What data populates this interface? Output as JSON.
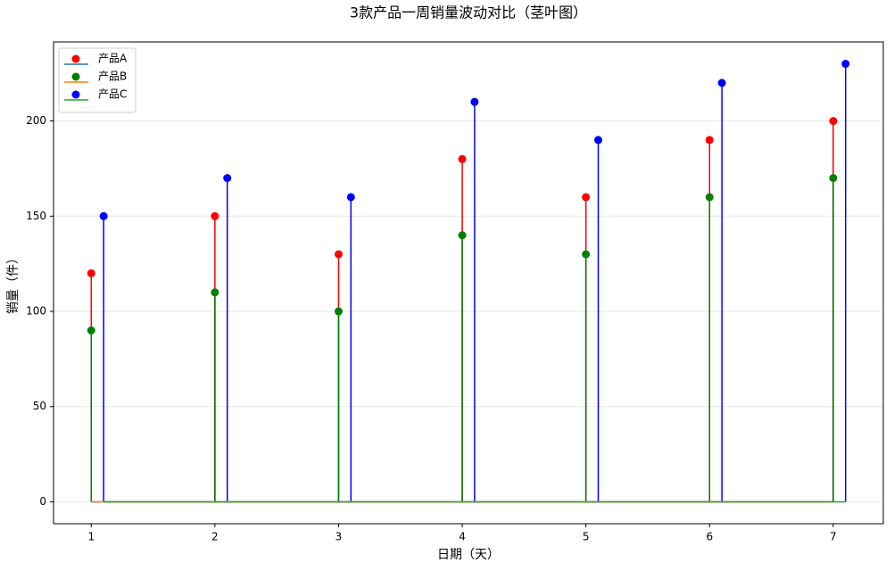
{
  "chart_data": {
    "type": "stem",
    "title": "3款产品一周销量波动对比（茎叶图）",
    "x_label": "日期（天）",
    "y_label": "销量（件）",
    "xlim": [
      0.695,
      7.405
    ],
    "ylim": [
      -11.5,
      241.5
    ],
    "xticks": [
      1,
      2,
      3,
      4,
      5,
      6,
      7
    ],
    "yticks": [
      0,
      50,
      100,
      150,
      200
    ],
    "grid": true,
    "legend": "upper left",
    "series": [
      {
        "name": "产品A",
        "color": "#ff0000",
        "baseline_color": "#1f77b4",
        "x": [
          1,
          2,
          3,
          4,
          5,
          6,
          7
        ],
        "values": [
          120,
          150,
          130,
          180,
          160,
          190,
          200
        ]
      },
      {
        "name": "产品B",
        "color": "#008000",
        "baseline_color": "#ff7f0e",
        "x": [
          1,
          2,
          3,
          4,
          5,
          6,
          7
        ],
        "values": [
          90,
          110,
          100,
          140,
          130,
          160,
          170
        ]
      },
      {
        "name": "产品C",
        "color": "#0000ff",
        "baseline_color": "#2ca02c",
        "x": [
          1.1,
          2.1,
          3.1,
          4.1,
          5.1,
          6.1,
          7.1
        ],
        "values": [
          150,
          170,
          160,
          210,
          190,
          220,
          230
        ]
      }
    ]
  }
}
